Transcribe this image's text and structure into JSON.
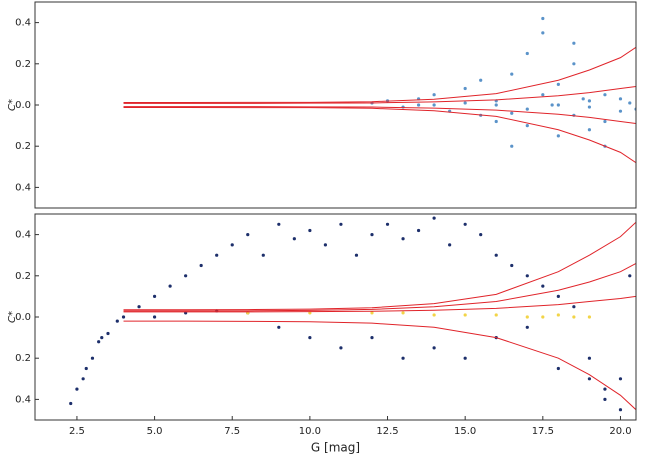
{
  "chart_data": [
    {
      "type": "scatter",
      "y_label": "C*",
      "xlim": [
        1.15,
        20.5
      ],
      "ylim": [
        -0.5,
        0.5
      ],
      "yticks": [
        0.4,
        0.2,
        {
          "value": 0.0,
          "label": "0.0"
        },
        {
          "value": -0.2,
          "label": "0.2"
        },
        {
          "value": -0.4,
          "label": "0.4"
        }
      ],
      "series": [
        {
          "color": "#5b93c9",
          "x": [
            12,
            12.5,
            13,
            13.5,
            14,
            14.5,
            15,
            15.5,
            15.5,
            16,
            16,
            16.5,
            16.5,
            17,
            17,
            17.5,
            17.5,
            18,
            18,
            18.5,
            18.5,
            19,
            19,
            19.5,
            19.5,
            20,
            20,
            20.3,
            14,
            15,
            16,
            17,
            18,
            19,
            17.5,
            18.5,
            19.5,
            16.5,
            17.8,
            18.8,
            13.5,
            20.5
          ],
          "values": [
            0.01,
            0.02,
            -0.01,
            0.03,
            0.05,
            -0.03,
            0.08,
            -0.05,
            0.12,
            0.02,
            -0.08,
            0.15,
            -0.04,
            0.25,
            -0.1,
            0.35,
            0.05,
            -0.15,
            0.1,
            0.2,
            -0.05,
            0.02,
            -0.12,
            0.05,
            -0.08,
            0.03,
            -0.03,
            0.01,
            0.0,
            0.01,
            0.0,
            -0.02,
            0.0,
            -0.01,
            0.42,
            0.3,
            -0.2,
            -0.2,
            0.0,
            0.03,
            0.0,
            -0.02
          ]
        }
      ],
      "curves_x": [
        4,
        6,
        8,
        10,
        12,
        14,
        16,
        18,
        19,
        20,
        20.5
      ],
      "curves_color": "#e0242a",
      "curves": [
        [
          0.012,
          0.012,
          0.013,
          0.013,
          0.016,
          0.028,
          0.055,
          0.12,
          0.17,
          0.23,
          0.28
        ],
        [
          -0.012,
          -0.012,
          -0.013,
          -0.013,
          -0.016,
          -0.028,
          -0.055,
          -0.12,
          -0.17,
          -0.23,
          -0.28
        ],
        [
          0.008,
          0.008,
          0.008,
          0.009,
          0.01,
          0.015,
          0.025,
          0.045,
          0.06,
          0.08,
          0.09
        ],
        [
          -0.008,
          -0.008,
          -0.008,
          -0.009,
          -0.01,
          -0.015,
          -0.025,
          -0.045,
          -0.06,
          -0.08,
          -0.09
        ]
      ]
    },
    {
      "type": "scatter",
      "y_label": "C*",
      "x_label": "G [mag]",
      "xlim": [
        1.15,
        20.5
      ],
      "ylim": [
        -0.5,
        0.5
      ],
      "xticks": [
        2.5,
        {
          "value": 5.0,
          "label": "5.0"
        },
        7.5,
        {
          "value": 10.0,
          "label": "10.0"
        },
        12.5,
        {
          "value": 15.0,
          "label": "15.0"
        },
        17.5,
        {
          "value": 20.0,
          "label": "20.0"
        }
      ],
      "yticks": [
        0.4,
        0.2,
        {
          "value": 0.0,
          "label": "0.0"
        },
        {
          "value": -0.2,
          "label": "0.2"
        },
        {
          "value": -0.4,
          "label": "0.4"
        }
      ],
      "series": [
        {
          "color": "#1d2f6b",
          "x": [
            2.3,
            2.5,
            2.8,
            3.0,
            3.2,
            3.5,
            3.8,
            4.0,
            4.5,
            5,
            5.5,
            6,
            6.5,
            7,
            7.5,
            8,
            8.5,
            9,
            9.5,
            10,
            10.5,
            11,
            11.5,
            12,
            12.5,
            13,
            13.5,
            14,
            14.5,
            15,
            15.5,
            16,
            16.5,
            17,
            17.5,
            18,
            18.5,
            19,
            19.5,
            20,
            5,
            6,
            7,
            8,
            9,
            10,
            11,
            12,
            13,
            14,
            15,
            16,
            17,
            18,
            19,
            19.5,
            20,
            20.3,
            2.7,
            3.3
          ],
          "values": [
            -0.42,
            -0.35,
            -0.25,
            -0.2,
            -0.12,
            -0.08,
            -0.02,
            0.0,
            0.05,
            0.1,
            0.15,
            0.2,
            0.25,
            0.3,
            0.35,
            0.4,
            0.3,
            0.45,
            0.38,
            0.42,
            0.35,
            0.45,
            0.3,
            0.4,
            0.45,
            0.38,
            0.42,
            0.48,
            0.35,
            0.45,
            0.4,
            0.3,
            0.25,
            0.2,
            0.15,
            0.1,
            0.05,
            -0.2,
            -0.35,
            -0.45,
            0.0,
            0.02,
            0.03,
            0.02,
            -0.05,
            -0.1,
            -0.15,
            -0.1,
            -0.2,
            -0.15,
            -0.2,
            -0.1,
            -0.05,
            -0.25,
            -0.3,
            -0.4,
            -0.3,
            0.2,
            -0.3,
            -0.1
          ]
        },
        {
          "color": "#f2d447",
          "x": [
            8,
            10,
            12,
            13,
            14,
            15,
            16,
            17,
            17.5,
            18,
            18.5,
            19
          ],
          "values": [
            0.02,
            0.02,
            0.02,
            0.02,
            0.01,
            0.01,
            0.01,
            0.0,
            0.0,
            0.01,
            0.0,
            0.0
          ]
        }
      ],
      "curves_x": [
        4,
        6,
        8,
        10,
        12,
        14,
        16,
        18,
        19,
        20,
        20.5
      ],
      "curves_color": "#e0242a",
      "curves": [
        [
          0.035,
          0.035,
          0.036,
          0.038,
          0.045,
          0.065,
          0.11,
          0.22,
          0.3,
          0.39,
          0.46
        ],
        [
          -0.02,
          -0.02,
          -0.021,
          -0.023,
          -0.03,
          -0.05,
          -0.1,
          -0.2,
          -0.28,
          -0.38,
          -0.45
        ],
        [
          0.03,
          0.03,
          0.03,
          0.032,
          0.037,
          0.05,
          0.075,
          0.13,
          0.17,
          0.22,
          0.26
        ],
        [
          0.025,
          0.025,
          0.025,
          0.026,
          0.028,
          0.033,
          0.042,
          0.06,
          0.075,
          0.09,
          0.1
        ]
      ]
    }
  ]
}
